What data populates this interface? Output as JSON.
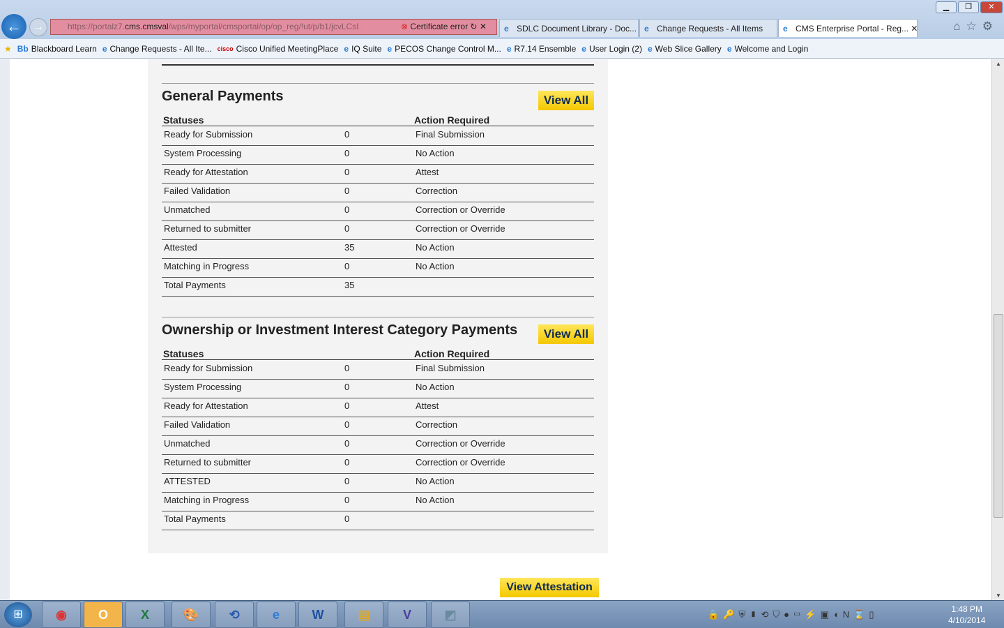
{
  "browser": {
    "url_prefix": "https://portalz7.",
    "url_domain": "cms.cmsval",
    "url_path": "/wps/myportal/cmsportal/op/op_reg/!ut/p/b1/jcvLCsI",
    "certificate": "Certificate error",
    "tabs": [
      {
        "label": "SDLC Document Library - Doc..."
      },
      {
        "label": "Change Requests - All Items"
      },
      {
        "label": "CMS Enterprise Portal - Reg..."
      }
    ],
    "favorites": [
      "Blackboard Learn",
      "Change Requests - All Ite...",
      "Cisco Unified MeetingPlace",
      "IQ Suite",
      "PECOS Change Control M...",
      "R7.14 Ensemble",
      "User Login (2)",
      "Web Slice Gallery",
      "Welcome and Login"
    ]
  },
  "page": {
    "columns": {
      "status": "Statuses",
      "action": "Action Required"
    },
    "view_all": "View All",
    "view_attestation": "View Attestation",
    "sections": [
      {
        "title": "General Payments",
        "rows": [
          [
            "Ready for Submission",
            "0",
            "Final Submission"
          ],
          [
            "System Processing",
            "0",
            "No Action"
          ],
          [
            "Ready for Attestation",
            "0",
            "Attest"
          ],
          [
            "Failed Validation",
            "0",
            "Correction"
          ],
          [
            "Unmatched",
            "0",
            "Correction or Override"
          ],
          [
            "Returned to submitter",
            "0",
            "Correction or Override"
          ],
          [
            "Attested",
            "35",
            "No Action"
          ],
          [
            "Matching in Progress",
            "0",
            "No Action"
          ],
          [
            "Total Payments",
            "35",
            ""
          ]
        ]
      },
      {
        "title": "Ownership or Investment Interest Category Payments",
        "rows": [
          [
            "Ready for Submission",
            "0",
            "Final Submission"
          ],
          [
            "System Processing",
            "0",
            "No Action"
          ],
          [
            "Ready for Attestation",
            "0",
            "Attest"
          ],
          [
            "Failed Validation",
            "0",
            "Correction"
          ],
          [
            "Unmatched",
            "0",
            "Correction or Override"
          ],
          [
            "Returned to submitter",
            "0",
            "Correction or Override"
          ],
          [
            "ATTESTED",
            "0",
            "No Action"
          ],
          [
            "Matching in Progress",
            "0",
            "No Action"
          ],
          [
            "Total Payments",
            "0",
            ""
          ]
        ]
      }
    ]
  },
  "taskbar": {
    "time": "1:48 PM",
    "date": "4/10/2014"
  },
  "colors": {
    "button": "#f4c800",
    "panel": "#f3f3f3",
    "address_error": "#e38ea0"
  }
}
